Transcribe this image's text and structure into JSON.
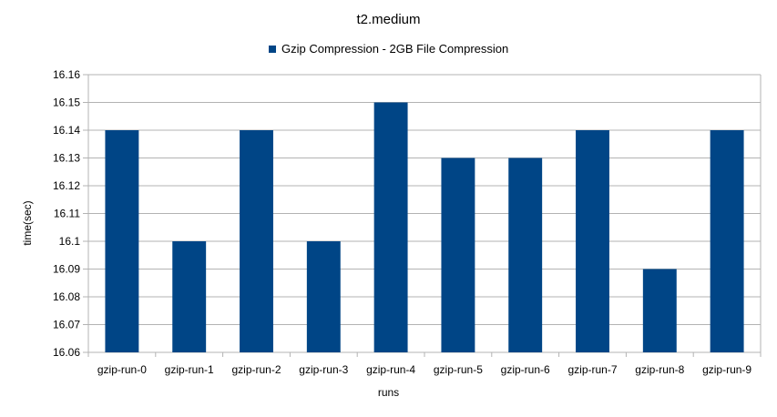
{
  "colors": {
    "bar": "#004586",
    "grid": "#b3b3b3",
    "axis": "#b3b3b3"
  },
  "chart_data": {
    "type": "bar",
    "title": "t2.medium",
    "xlabel": "runs",
    "ylabel": "time(sec)",
    "categories": [
      "gzip-run-0",
      "gzip-run-1",
      "gzip-run-2",
      "gzip-run-3",
      "gzip-run-4",
      "gzip-run-5",
      "gzip-run-6",
      "gzip-run-7",
      "gzip-run-8",
      "gzip-run-9"
    ],
    "series": [
      {
        "name": "Gzip Compression - 2GB File Compression",
        "values": [
          16.14,
          16.1,
          16.14,
          16.1,
          16.15,
          16.13,
          16.13,
          16.14,
          16.09,
          16.14
        ]
      }
    ],
    "ylim": [
      16.06,
      16.16
    ],
    "yticks": [
      "16.06",
      "16.07",
      "16.08",
      "16.09",
      "16.1",
      "16.11",
      "16.12",
      "16.13",
      "16.14",
      "16.15",
      "16.16"
    ],
    "grid": true,
    "legend_position": "top-center"
  }
}
